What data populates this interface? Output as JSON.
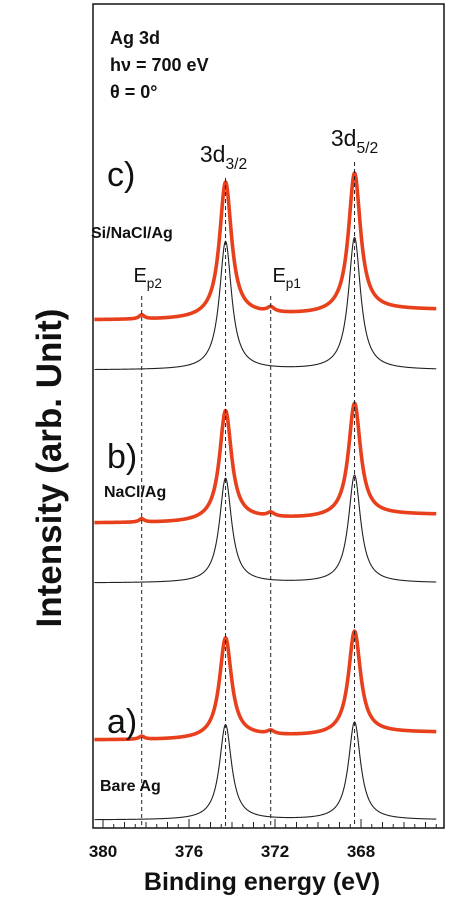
{
  "chart_data": {
    "type": "line",
    "title_lines": [
      "Ag 3d",
      "hν = 700 eV",
      "θ = 0°"
    ],
    "xlabel": "Binding energy (eV)",
    "ylabel": "Intensity (arb. Unit)",
    "x_reversed": true,
    "xlim": [
      380,
      364
    ],
    "x_ticks": [
      380,
      376,
      372,
      368
    ],
    "peak_labels": [
      {
        "base": "3d",
        "sub": "3/2",
        "energy": 374.3
      },
      {
        "base": "3d",
        "sub": "5/2",
        "energy": 368.3
      }
    ],
    "plasmon_labels": [
      {
        "base": "E",
        "sub": "p2",
        "energy": 378.2
      },
      {
        "base": "E",
        "sub": "p1",
        "energy": 372.2
      }
    ],
    "panels": [
      {
        "letter": "a)",
        "sample": "Bare Ag"
      },
      {
        "letter": "b)",
        "sample": "NaCl/Ag"
      },
      {
        "letter": "c)",
        "sample": "Si/NaCl/Ag"
      }
    ],
    "series": [
      {
        "style": "measured",
        "color": "#e8401c"
      },
      {
        "style": "fit",
        "color": "#222222"
      }
    ]
  }
}
